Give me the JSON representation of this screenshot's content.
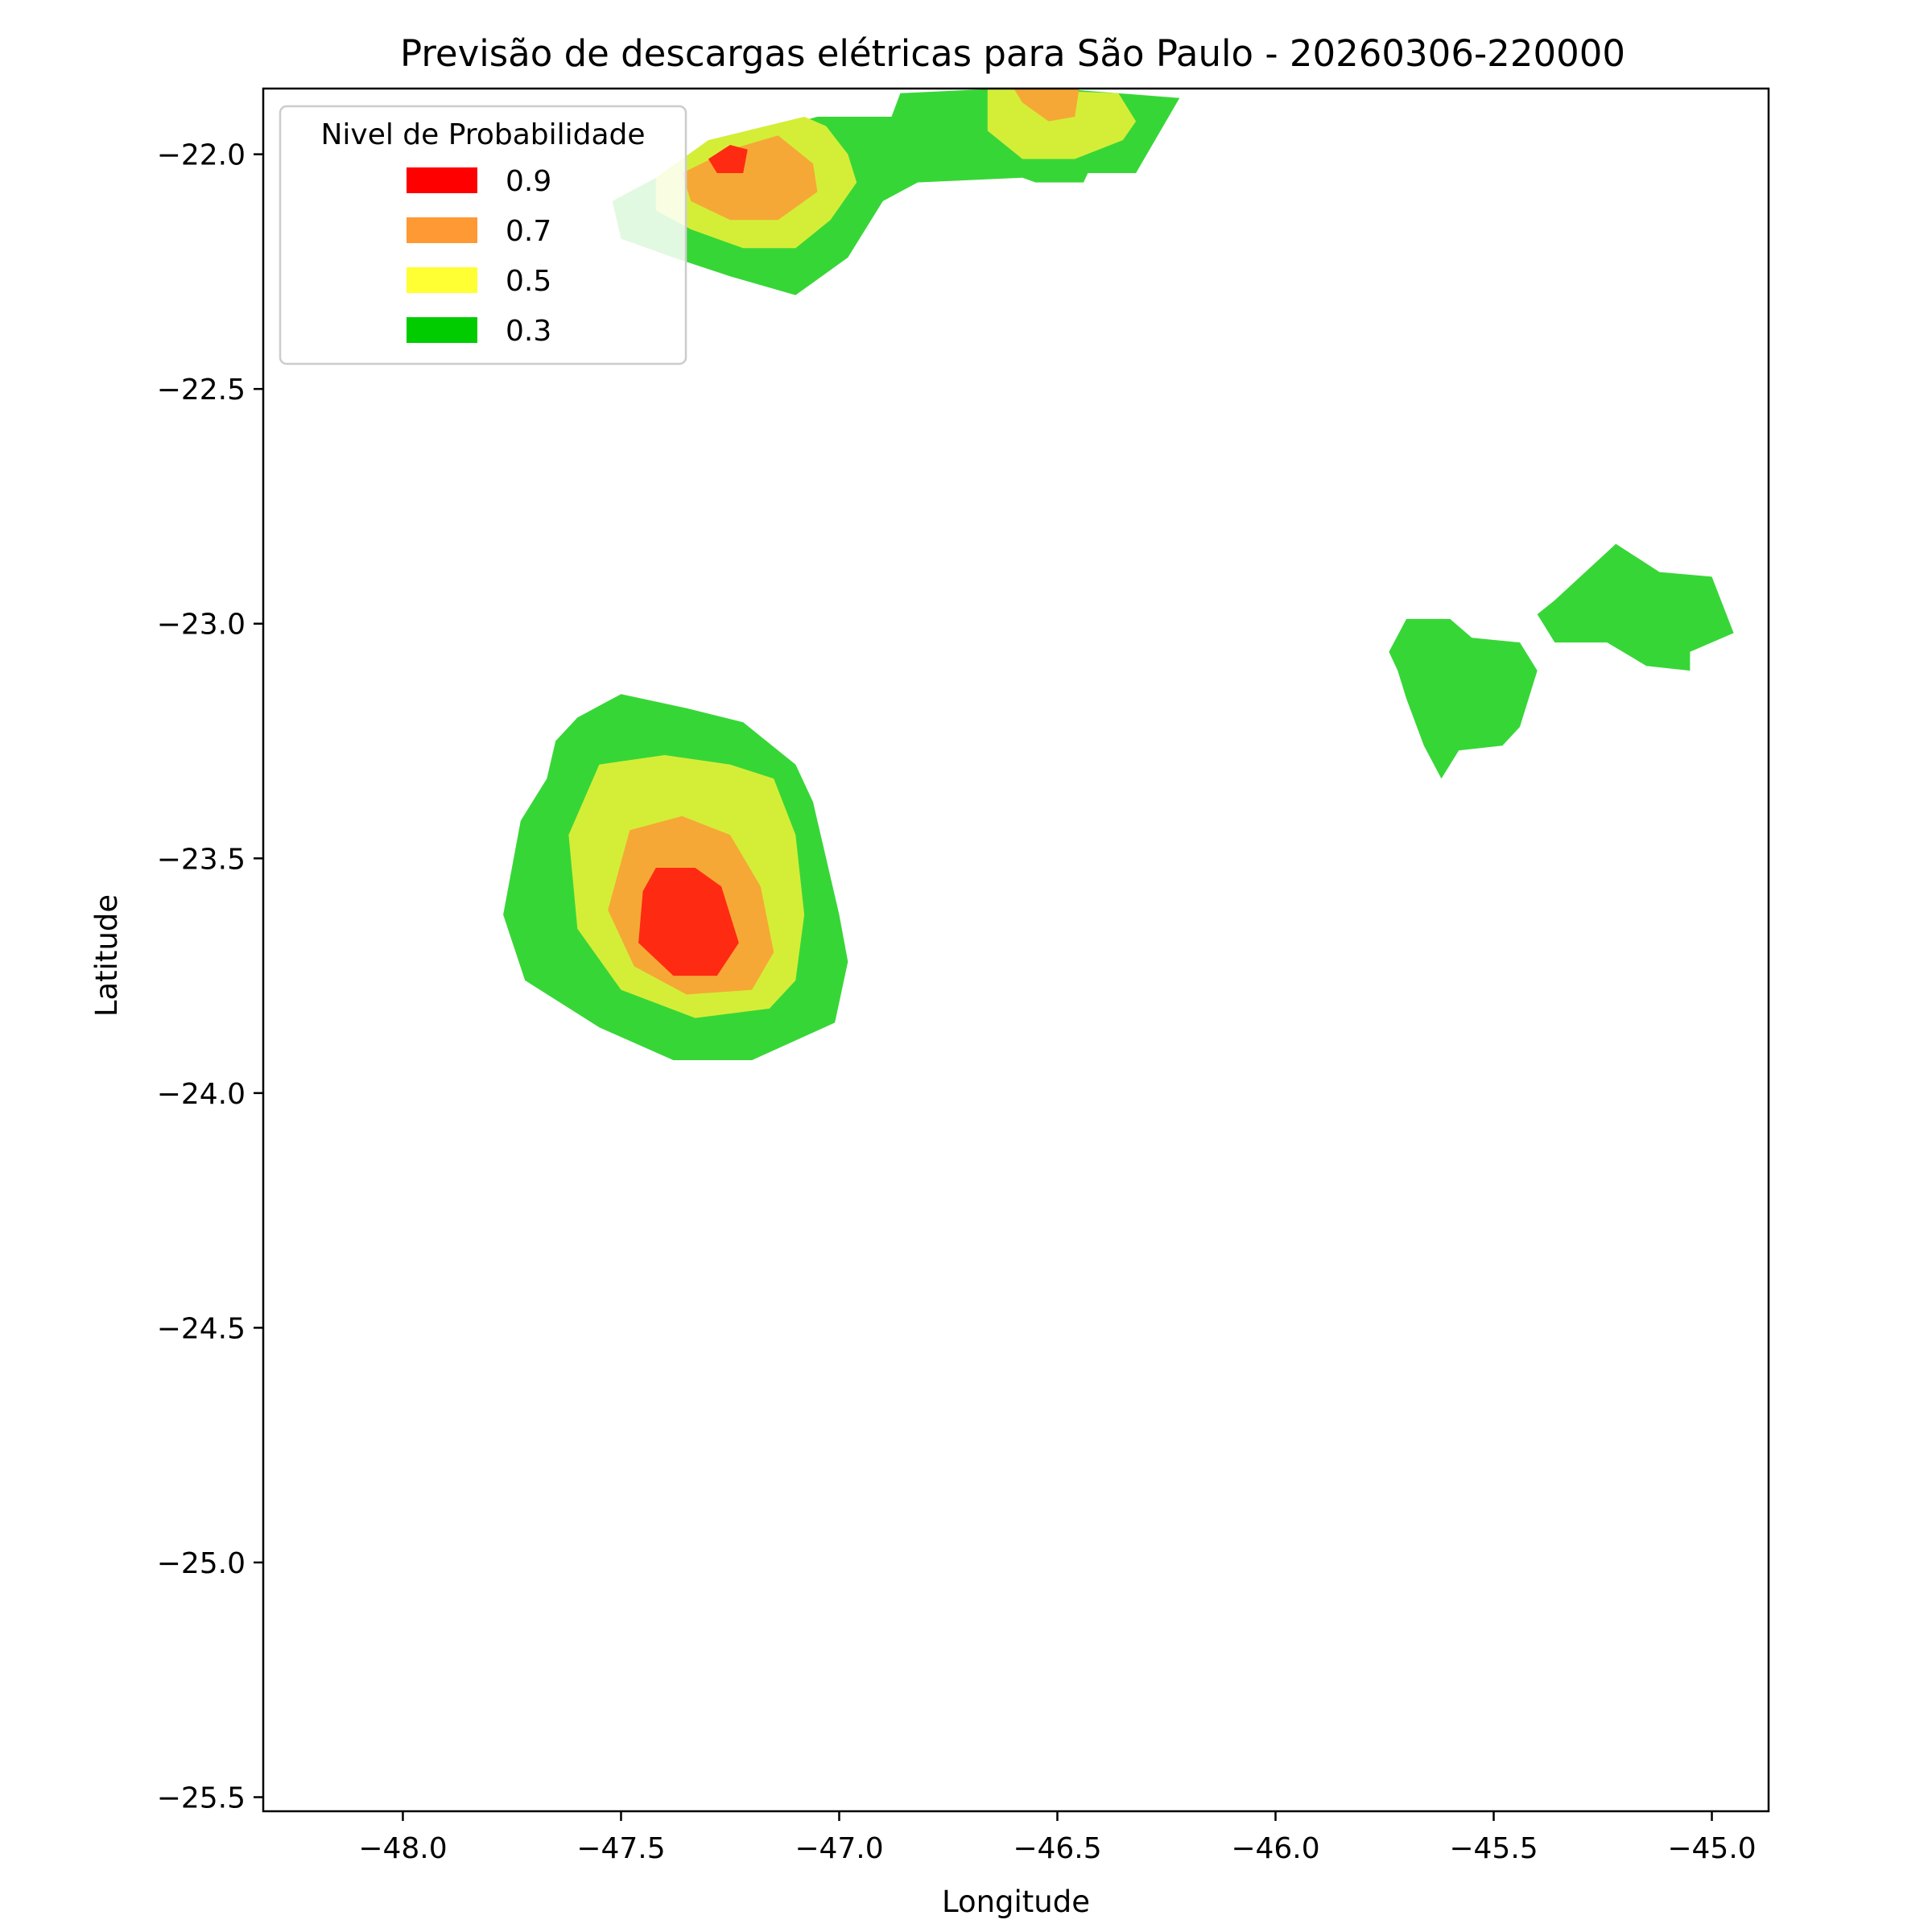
{
  "chart_data": {
    "type": "heatmap",
    "title": "Previsão de descargas elétricas para São Paulo - 20260306-220000",
    "xlabel": "Longitude",
    "ylabel": "Latitude",
    "xlim": [
      -48.32,
      -44.87
    ],
    "ylim": [
      -25.53,
      -21.86
    ],
    "xticks": [
      -48.0,
      -47.5,
      -47.0,
      -46.5,
      -46.0,
      -45.5,
      -45.0
    ],
    "yticks": [
      -22.0,
      -22.5,
      -23.0,
      -23.5,
      -24.0,
      -24.5,
      -25.0,
      -25.5
    ],
    "grid": false,
    "legend": {
      "title": "Nivel de Probabilidade",
      "placement": "top-left",
      "entries": [
        {
          "label": "0.9",
          "color": "#ff0000"
        },
        {
          "label": "0.7",
          "color": "#ff9933"
        },
        {
          "label": "0.5",
          "color": "#ffff33"
        },
        {
          "label": "0.3",
          "color": "#00cc00"
        }
      ]
    },
    "fill_colors": {
      "0.3": "#37d637",
      "0.5": "#d4ee38",
      "0.7": "#f6a836",
      "0.9": "#ff2a12"
    },
    "regions": [
      {
        "level": "0.3",
        "points": [
          [
            -47.52,
            -22.1
          ],
          [
            -47.28,
            -21.98
          ],
          [
            -47.05,
            -21.92
          ],
          [
            -46.88,
            -21.92
          ],
          [
            -46.86,
            -21.87
          ],
          [
            -46.63,
            -21.86
          ],
          [
            -46.5,
            -21.86
          ],
          [
            -46.22,
            -21.88
          ],
          [
            -46.32,
            -22.04
          ],
          [
            -46.43,
            -22.04
          ],
          [
            -46.44,
            -22.06
          ],
          [
            -46.55,
            -22.06
          ],
          [
            -46.58,
            -22.05
          ],
          [
            -46.82,
            -22.06
          ],
          [
            -46.9,
            -22.1
          ],
          [
            -46.98,
            -22.22
          ],
          [
            -47.1,
            -22.3
          ],
          [
            -47.25,
            -22.26
          ],
          [
            -47.38,
            -22.22
          ],
          [
            -47.5,
            -22.18
          ]
        ]
      },
      {
        "level": "0.5",
        "points": [
          [
            -47.42,
            -22.05
          ],
          [
            -47.3,
            -21.97
          ],
          [
            -47.08,
            -21.92
          ],
          [
            -47.03,
            -21.94
          ],
          [
            -46.98,
            -22.0
          ],
          [
            -46.96,
            -22.06
          ],
          [
            -47.02,
            -22.14
          ],
          [
            -47.1,
            -22.2
          ],
          [
            -47.22,
            -22.2
          ],
          [
            -47.34,
            -22.16
          ],
          [
            -47.42,
            -22.12
          ]
        ]
      },
      {
        "level": "0.7",
        "points": [
          [
            -47.36,
            -22.04
          ],
          [
            -47.25,
            -21.99
          ],
          [
            -47.14,
            -21.96
          ],
          [
            -47.06,
            -22.02
          ],
          [
            -47.05,
            -22.08
          ],
          [
            -47.14,
            -22.14
          ],
          [
            -47.25,
            -22.14
          ],
          [
            -47.34,
            -22.1
          ]
        ]
      },
      {
        "level": "0.9",
        "points": [
          [
            -47.3,
            -22.01
          ],
          [
            -47.25,
            -21.98
          ],
          [
            -47.21,
            -21.99
          ],
          [
            -47.22,
            -22.04
          ],
          [
            -47.28,
            -22.04
          ]
        ]
      },
      {
        "level": "0.5",
        "points": [
          [
            -46.66,
            -21.86
          ],
          [
            -46.36,
            -21.87
          ],
          [
            -46.32,
            -21.93
          ],
          [
            -46.35,
            -21.97
          ],
          [
            -46.46,
            -22.01
          ],
          [
            -46.58,
            -22.01
          ],
          [
            -46.66,
            -21.95
          ]
        ]
      },
      {
        "level": "0.7",
        "points": [
          [
            -46.6,
            -21.86
          ],
          [
            -46.45,
            -21.86
          ],
          [
            -46.46,
            -21.92
          ],
          [
            -46.52,
            -21.93
          ],
          [
            -46.58,
            -21.89
          ]
        ]
      },
      {
        "level": "0.3",
        "points": [
          [
            -47.6,
            -23.2
          ],
          [
            -47.5,
            -23.15
          ],
          [
            -47.35,
            -23.18
          ],
          [
            -47.22,
            -23.21
          ],
          [
            -47.1,
            -23.3
          ],
          [
            -47.06,
            -23.38
          ],
          [
            -47.0,
            -23.62
          ],
          [
            -46.98,
            -23.72
          ],
          [
            -47.01,
            -23.85
          ],
          [
            -47.2,
            -23.93
          ],
          [
            -47.38,
            -23.93
          ],
          [
            -47.55,
            -23.86
          ],
          [
            -47.72,
            -23.76
          ],
          [
            -47.77,
            -23.62
          ],
          [
            -47.73,
            -23.42
          ],
          [
            -47.67,
            -23.33
          ],
          [
            -47.65,
            -23.25
          ]
        ]
      },
      {
        "level": "0.5",
        "points": [
          [
            -47.55,
            -23.3
          ],
          [
            -47.4,
            -23.28
          ],
          [
            -47.25,
            -23.3
          ],
          [
            -47.15,
            -23.33
          ],
          [
            -47.1,
            -23.45
          ],
          [
            -47.08,
            -23.62
          ],
          [
            -47.1,
            -23.76
          ],
          [
            -47.16,
            -23.82
          ],
          [
            -47.33,
            -23.84
          ],
          [
            -47.5,
            -23.78
          ],
          [
            -47.6,
            -23.65
          ],
          [
            -47.62,
            -23.45
          ]
        ]
      },
      {
        "level": "0.7",
        "points": [
          [
            -47.48,
            -23.44
          ],
          [
            -47.36,
            -23.41
          ],
          [
            -47.25,
            -23.45
          ],
          [
            -47.18,
            -23.56
          ],
          [
            -47.15,
            -23.7
          ],
          [
            -47.2,
            -23.78
          ],
          [
            -47.35,
            -23.79
          ],
          [
            -47.47,
            -23.73
          ],
          [
            -47.53,
            -23.61
          ]
        ]
      },
      {
        "level": "0.9",
        "points": [
          [
            -47.42,
            -23.52
          ],
          [
            -47.33,
            -23.52
          ],
          [
            -47.27,
            -23.56
          ],
          [
            -47.23,
            -23.68
          ],
          [
            -47.28,
            -23.75
          ],
          [
            -47.38,
            -23.75
          ],
          [
            -47.46,
            -23.68
          ],
          [
            -47.45,
            -23.57
          ]
        ]
      },
      {
        "level": "0.3",
        "points": [
          [
            -45.74,
            -23.06
          ],
          [
            -45.7,
            -22.99
          ],
          [
            -45.6,
            -22.99
          ],
          [
            -45.55,
            -23.03
          ],
          [
            -45.44,
            -23.04
          ],
          [
            -45.4,
            -23.1
          ],
          [
            -45.44,
            -23.22
          ],
          [
            -45.48,
            -23.26
          ],
          [
            -45.58,
            -23.27
          ],
          [
            -45.62,
            -23.33
          ],
          [
            -45.66,
            -23.26
          ],
          [
            -45.7,
            -23.16
          ],
          [
            -45.72,
            -23.1
          ]
        ]
      },
      {
        "level": "0.3",
        "points": [
          [
            -45.36,
            -22.95
          ],
          [
            -45.22,
            -22.83
          ],
          [
            -45.12,
            -22.89
          ],
          [
            -45.0,
            -22.9
          ],
          [
            -44.95,
            -23.02
          ],
          [
            -45.05,
            -23.06
          ],
          [
            -45.05,
            -23.1
          ],
          [
            -45.15,
            -23.09
          ],
          [
            -45.24,
            -23.04
          ],
          [
            -45.36,
            -23.04
          ],
          [
            -45.4,
            -22.98
          ]
        ]
      }
    ]
  }
}
